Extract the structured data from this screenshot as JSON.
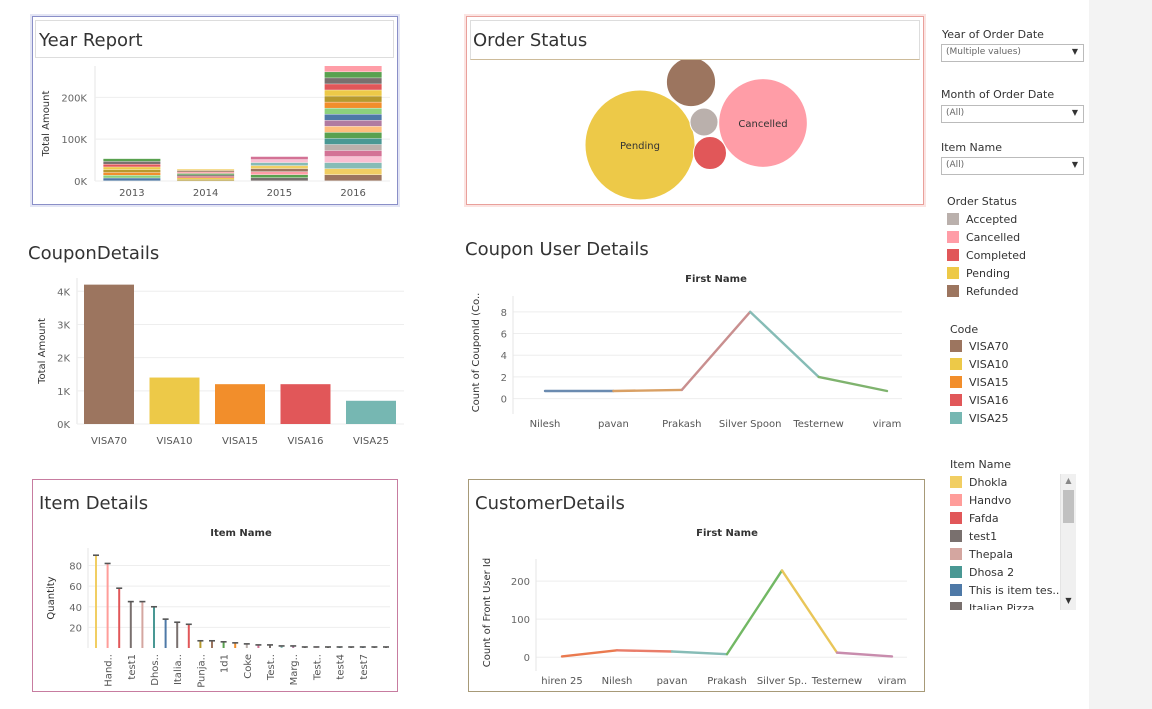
{
  "titles": {
    "year_report": "Year Report",
    "order_status": "Order Status",
    "coupon_details": "CouponDetails",
    "coupon_user_details": "Coupon User Details",
    "item_details": "Item Details",
    "customer_details": "CustomerDetails"
  },
  "filters": [
    {
      "label": "Year of Order Date",
      "value": "(Multiple values)"
    },
    {
      "label": "Month of Order Date",
      "value": "(All)"
    },
    {
      "label": "Item Name",
      "value": "(All)"
    }
  ],
  "legends": {
    "order_status": {
      "title": "Order Status",
      "items": [
        {
          "label": "Accepted",
          "color": "#bab0ac"
        },
        {
          "label": "Cancelled",
          "color": "#ff9da7"
        },
        {
          "label": "Completed",
          "color": "#e15759"
        },
        {
          "label": "Pending",
          "color": "#edc948"
        },
        {
          "label": "Refunded",
          "color": "#9c755f"
        }
      ]
    },
    "code": {
      "title": "Code",
      "items": [
        {
          "label": "VISA70",
          "color": "#9c755f"
        },
        {
          "label": "VISA10",
          "color": "#edc948"
        },
        {
          "label": "VISA15",
          "color": "#f28e2b"
        },
        {
          "label": "VISA16",
          "color": "#e15759"
        },
        {
          "label": "VISA25",
          "color": "#76b7b2"
        }
      ]
    },
    "item_name": {
      "title": "Item Name",
      "items": [
        {
          "label": "Dhokla",
          "color": "#f1ce63"
        },
        {
          "label": "Handvo",
          "color": "#ff9d9a"
        },
        {
          "label": "Fafda",
          "color": "#e15759"
        },
        {
          "label": "test1",
          "color": "#79706e"
        },
        {
          "label": "Thepala",
          "color": "#d4a6a0"
        },
        {
          "label": "Dhosa 2",
          "color": "#499894"
        },
        {
          "label": "This is item tes...",
          "color": "#4e79a7"
        },
        {
          "label": "Italian Pizza",
          "color": "#79706e"
        }
      ]
    }
  },
  "chart_data": [
    {
      "id": "year_report",
      "type": "bar",
      "stacked": true,
      "title": "Year Report",
      "ylabel": "Total Amount",
      "categories": [
        "2013",
        "2014",
        "2015",
        "2016"
      ],
      "yticks": [
        "0K",
        "100K",
        "200K"
      ],
      "ylim": [
        0,
        275000
      ],
      "totals": [
        53000,
        28000,
        58000,
        275000
      ],
      "segment_colors": [
        "#4e79a7",
        "#8cd17d",
        "#f28e2b",
        "#b6992d",
        "#edc948",
        "#e15759",
        "#79706e",
        "#59a14f",
        "#ff9da7",
        "#9c755f",
        "#f1ce63",
        "#86bcb6",
        "#fabfd2",
        "#d37295",
        "#bab0ac",
        "#499894",
        "#59a14f",
        "#ffbe7d",
        "#b07aa1"
      ]
    },
    {
      "id": "order_status",
      "type": "bubble",
      "title": "Order Status",
      "bubbles": [
        {
          "label": "Pending",
          "show_label": true,
          "size": 100,
          "color": "#edc948"
        },
        {
          "label": "Cancelled",
          "show_label": true,
          "size": 65,
          "color": "#ff9da7"
        },
        {
          "label": "Refunded",
          "show_label": false,
          "size": 20,
          "color": "#9c755f"
        },
        {
          "label": "Completed",
          "show_label": false,
          "size": 9,
          "color": "#e15759"
        },
        {
          "label": "Accepted",
          "show_label": false,
          "size": 6.5,
          "color": "#bab0ac"
        }
      ]
    },
    {
      "id": "coupon_details",
      "type": "bar",
      "title": "CouponDetails",
      "ylabel": "Total Amount",
      "categories": [
        "VISA70",
        "VISA10",
        "VISA15",
        "VISA16",
        "VISA25"
      ],
      "values": [
        4200,
        1400,
        1200,
        1200,
        700
      ],
      "colors": [
        "#9c755f",
        "#edc948",
        "#f28e2b",
        "#e15759",
        "#76b7b2"
      ],
      "yticks": [
        "0K",
        "1K",
        "2K",
        "3K",
        "4K"
      ],
      "ylim": [
        0,
        4400
      ]
    },
    {
      "id": "coupon_user_details",
      "type": "line",
      "title": "Coupon User Details",
      "xlabel": "First Name",
      "ylabel": "Count of CouponId (Co..",
      "categories": [
        "Nilesh",
        "pavan",
        "Prakash",
        "Silver Spoon",
        "Testernew",
        "viram"
      ],
      "values": [
        0.7,
        0.7,
        0.8,
        8,
        2,
        0.7
      ],
      "yticks": [
        0,
        2,
        4,
        6,
        8
      ],
      "ylim": [
        -0.5,
        9
      ]
    },
    {
      "id": "item_details",
      "type": "lollipop",
      "title": "Item Details",
      "xlabel": "Item Name",
      "ylabel": "Quantity",
      "tick_labels": [
        "Hand..",
        "test1",
        "Dhos..",
        "Italia..",
        "Punja..",
        "1d1",
        "Coke",
        "Test..",
        "Marg..",
        "Test..",
        "test4",
        "test7"
      ],
      "values": [
        90,
        82,
        58,
        45,
        45,
        40,
        28,
        25,
        23,
        7,
        7,
        6,
        5,
        4,
        3,
        3,
        2,
        2,
        1,
        1,
        1,
        1,
        1,
        1,
        1,
        1
      ],
      "colors": [
        "#f1ce63",
        "#ff9d9a",
        "#e15759",
        "#79706e",
        "#d4a6a0",
        "#499894",
        "#4e79a7",
        "#79706e",
        "#e15759",
        "#b6992d",
        "#9c755f",
        "#59a14f",
        "#f28e2b",
        "#bab0ac",
        "#d37295",
        "#79706e",
        "#86bcb6",
        "#b07aa1",
        "#79706e",
        "#fabfd2",
        "#79706e",
        "#499894",
        "#79706e",
        "#4e79a7",
        "#79706e",
        "#79706e"
      ],
      "yticks": [
        20,
        40,
        60,
        80
      ],
      "ylim": [
        0,
        97
      ]
    },
    {
      "id": "customer_details",
      "type": "line",
      "title": "CustomerDetails",
      "xlabel": "First Name",
      "ylabel": "Count of Front User Id",
      "categories": [
        "hiren 25",
        "Nilesh",
        "pavan",
        "Prakash",
        "Silver Sp..",
        "Testernew",
        "viram"
      ],
      "values": [
        2,
        18,
        15,
        8,
        228,
        12,
        2
      ],
      "yticks": [
        0,
        100,
        200
      ],
      "ylim": [
        -10,
        245
      ]
    }
  ]
}
